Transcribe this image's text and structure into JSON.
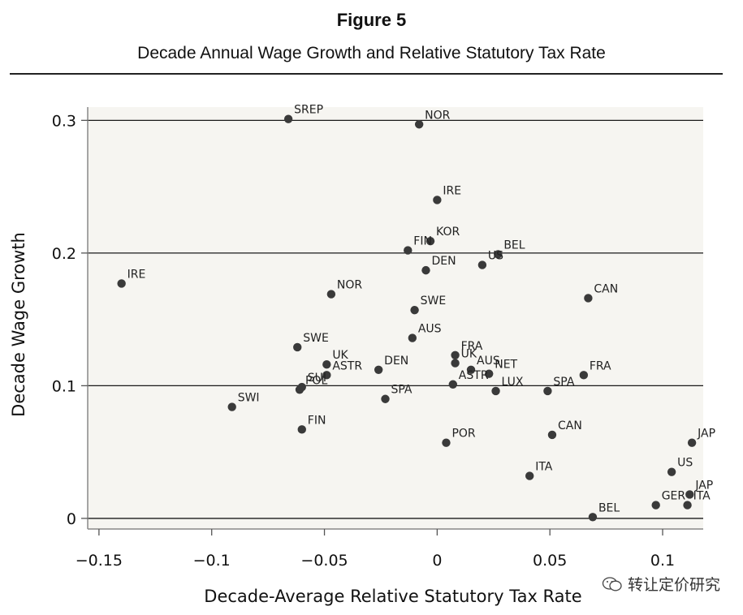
{
  "figure_label": "Figure 5",
  "watermark": "转让定价研究",
  "chart_data": {
    "type": "scatter",
    "title": "Decade Annual Wage Growth and Relative Statutory Tax Rate",
    "xlabel": "Decade-Average Relative Statutory Tax Rate",
    "ylabel": "Decade Wage Growth",
    "xlim": [
      -0.155,
      0.118
    ],
    "ylim": [
      -0.008,
      0.31
    ],
    "x_ticks": [
      -0.15,
      -0.1,
      -0.05,
      0,
      0.05,
      0.1
    ],
    "x_tick_labels": [
      "−0.15",
      "−0.1",
      "−0.05",
      "0",
      "0.05",
      "0.1"
    ],
    "y_ticks": [
      0,
      0.1,
      0.2,
      0.3
    ],
    "y_tick_labels": [
      "0",
      "0.1",
      "0.2",
      "0.3"
    ],
    "grid": "horizontal",
    "colors": {
      "points": "#3a3a3a",
      "plot_background": "#f6f5f1",
      "gridline": "#1a1a1a"
    },
    "points": [
      {
        "label": "SREP",
        "x": -0.066,
        "y": 0.301
      },
      {
        "label": "NOR",
        "x": -0.008,
        "y": 0.297
      },
      {
        "label": "IRE",
        "x": 0.0,
        "y": 0.24
      },
      {
        "label": "KOR",
        "x": -0.003,
        "y": 0.209
      },
      {
        "label": "FIN",
        "x": -0.013,
        "y": 0.202
      },
      {
        "label": "BEL",
        "x": 0.027,
        "y": 0.199
      },
      {
        "label": "US",
        "x": 0.02,
        "y": 0.191
      },
      {
        "label": "DEN",
        "x": -0.005,
        "y": 0.187
      },
      {
        "label": "IRE",
        "x": -0.14,
        "y": 0.177
      },
      {
        "label": "NOR",
        "x": -0.047,
        "y": 0.169
      },
      {
        "label": "CAN",
        "x": 0.067,
        "y": 0.166
      },
      {
        "label": "SWE",
        "x": -0.01,
        "y": 0.157
      },
      {
        "label": "AUS",
        "x": -0.011,
        "y": 0.136
      },
      {
        "label": "SWE",
        "x": -0.062,
        "y": 0.129
      },
      {
        "label": "FRA",
        "x": 0.008,
        "y": 0.123
      },
      {
        "label": "UK",
        "x": 0.008,
        "y": 0.117
      },
      {
        "label": "UK",
        "x": -0.049,
        "y": 0.116
      },
      {
        "label": "AUS",
        "x": 0.015,
        "y": 0.112
      },
      {
        "label": "DEN",
        "x": -0.026,
        "y": 0.112
      },
      {
        "label": "NET",
        "x": 0.023,
        "y": 0.109
      },
      {
        "label": "ASTR",
        "x": -0.049,
        "y": 0.108
      },
      {
        "label": "FRA",
        "x": 0.065,
        "y": 0.108
      },
      {
        "label": "SUI",
        "x": -0.06,
        "y": 0.099
      },
      {
        "label": "POL",
        "x": -0.061,
        "y": 0.097
      },
      {
        "label": "ASTR",
        "x": 0.007,
        "y": 0.101
      },
      {
        "label": "LUX",
        "x": 0.026,
        "y": 0.096
      },
      {
        "label": "SPA",
        "x": 0.049,
        "y": 0.096
      },
      {
        "label": "SPA",
        "x": -0.023,
        "y": 0.09
      },
      {
        "label": "SWI",
        "x": -0.091,
        "y": 0.084
      },
      {
        "label": "FIN",
        "x": -0.06,
        "y": 0.067
      },
      {
        "label": "CAN",
        "x": 0.051,
        "y": 0.063
      },
      {
        "label": "POR",
        "x": 0.004,
        "y": 0.057
      },
      {
        "label": "JAP",
        "x": 0.113,
        "y": 0.057
      },
      {
        "label": "US",
        "x": 0.104,
        "y": 0.035
      },
      {
        "label": "ITA",
        "x": 0.041,
        "y": 0.032
      },
      {
        "label": "JAP",
        "x": 0.112,
        "y": 0.018
      },
      {
        "label": "GER",
        "x": 0.097,
        "y": 0.01
      },
      {
        "label": "ITA",
        "x": 0.111,
        "y": 0.01
      },
      {
        "label": "BEL",
        "x": 0.069,
        "y": 0.001
      }
    ]
  }
}
